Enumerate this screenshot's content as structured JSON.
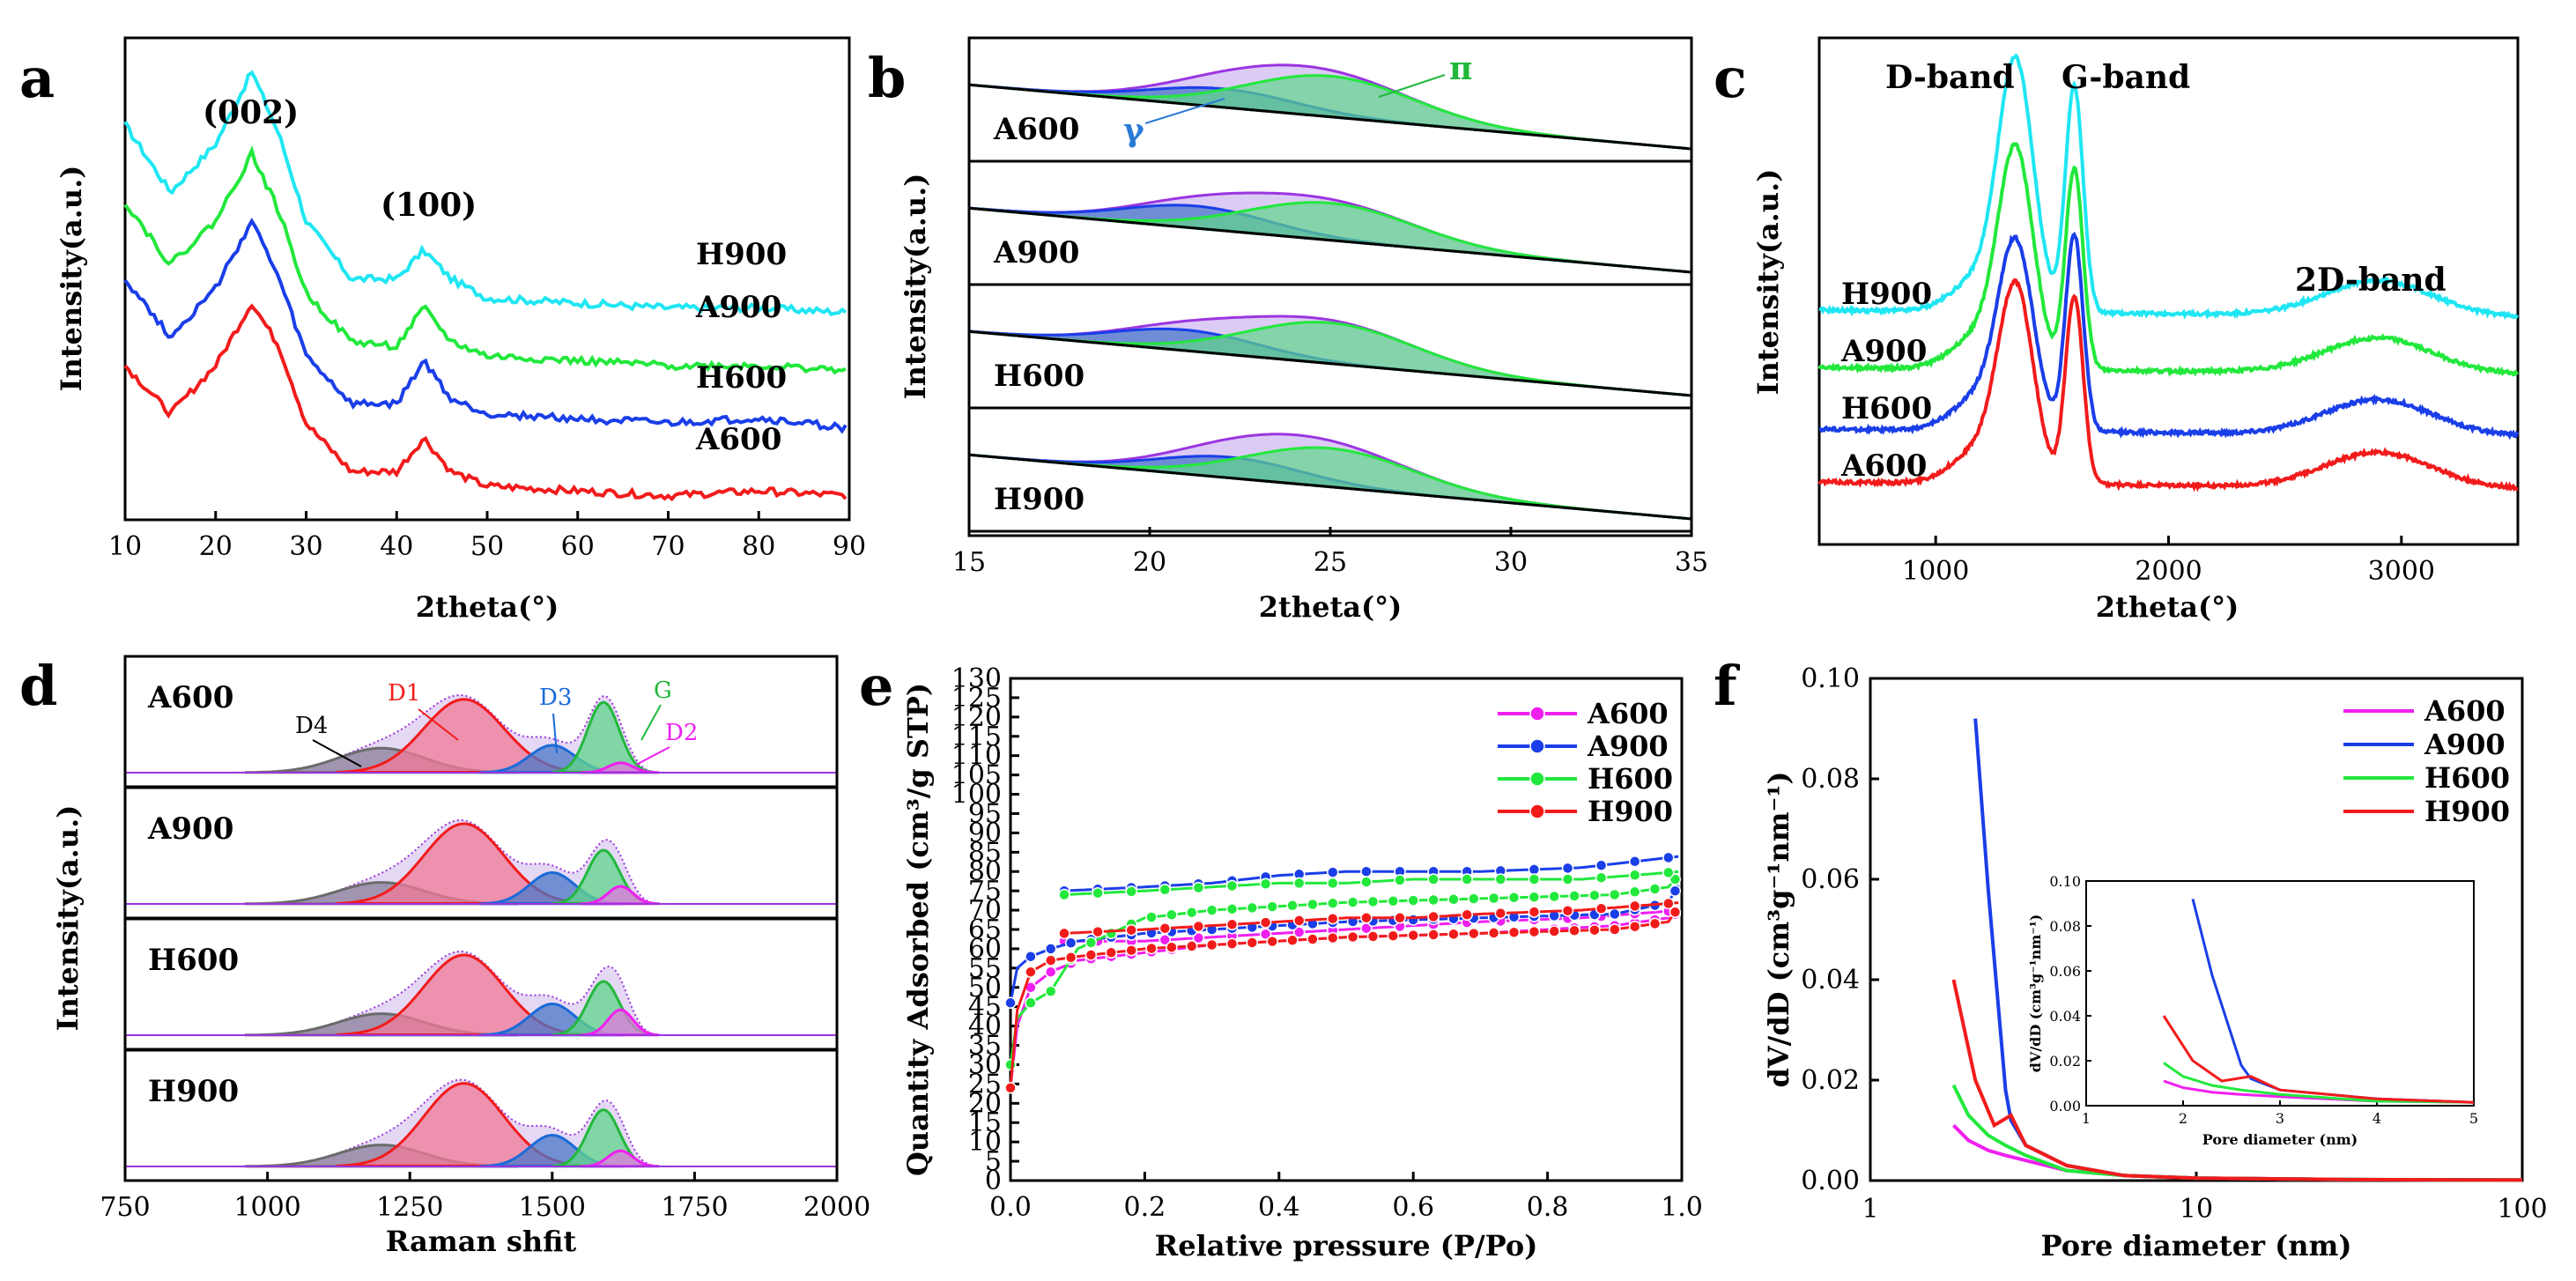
{
  "panels": {
    "a": "a",
    "b": "b",
    "c": "c",
    "d": "d",
    "e": "e",
    "f": "f"
  },
  "colors": {
    "cyan": "#1fe6f2",
    "green": "#22e83c",
    "blue": "#1a3ee8",
    "red": "#f21b1b",
    "magenta": "#f01ff0",
    "purple": "#9b35e0",
    "bluefill": "#4a78c8",
    "greenfill": "#5fd68a",
    "pinkfill": "#f07a98",
    "grayfill": "#8b7e9a"
  },
  "chart_data": [
    {
      "id": "a",
      "type": "line",
      "title": "",
      "xlabel": "2theta(°)",
      "ylabel": "Intensity(a.u.)",
      "xlim": [
        10,
        90
      ],
      "xticks": [
        "10",
        "20",
        "30",
        "40",
        "50",
        "60",
        "70",
        "80",
        "90"
      ],
      "peak_labels": [
        "(002)",
        "(100)"
      ],
      "series": [
        {
          "name": "H900",
          "color": "#1fe6f2",
          "x": [
            10,
            15,
            20,
            24,
            27,
            30,
            35,
            40,
            43,
            46,
            50,
            60,
            70,
            80,
            90
          ],
          "values": [
            0.82,
            0.68,
            0.78,
            0.93,
            0.8,
            0.62,
            0.5,
            0.5,
            0.56,
            0.5,
            0.46,
            0.45,
            0.44,
            0.44,
            0.43
          ]
        },
        {
          "name": "A900",
          "color": "#22e83c",
          "x": [
            10,
            15,
            20,
            24,
            27,
            30,
            35,
            40,
            43,
            46,
            50,
            60,
            70,
            80,
            90
          ],
          "values": [
            0.66,
            0.53,
            0.62,
            0.76,
            0.64,
            0.47,
            0.37,
            0.36,
            0.44,
            0.37,
            0.34,
            0.33,
            0.32,
            0.32,
            0.31
          ]
        },
        {
          "name": "H600",
          "color": "#1a3ee8",
          "x": [
            10,
            15,
            20,
            24,
            27,
            30,
            35,
            40,
            43,
            46,
            50,
            60,
            70,
            80,
            90
          ],
          "values": [
            0.5,
            0.38,
            0.48,
            0.62,
            0.5,
            0.34,
            0.24,
            0.24,
            0.33,
            0.25,
            0.22,
            0.21,
            0.2,
            0.21,
            0.19
          ]
        },
        {
          "name": "A600",
          "color": "#f21b1b",
          "x": [
            10,
            15,
            20,
            24,
            27,
            30,
            35,
            40,
            43,
            46,
            50,
            60,
            70,
            80,
            90
          ],
          "values": [
            0.32,
            0.22,
            0.32,
            0.45,
            0.36,
            0.2,
            0.1,
            0.1,
            0.17,
            0.1,
            0.07,
            0.06,
            0.05,
            0.06,
            0.05
          ]
        }
      ]
    },
    {
      "id": "b",
      "type": "area",
      "title": "",
      "xlabel": "2theta(°)",
      "ylabel": "Intensity(a.u.)",
      "xlim": [
        15,
        35
      ],
      "xticks": [
        "15",
        "20",
        "25",
        "30",
        "35"
      ],
      "annotations": [
        "π",
        "γ"
      ],
      "subplots": [
        {
          "name": "A600",
          "gamma_center": 22.0,
          "gamma_height": 0.25,
          "pi_center": 25.0,
          "pi_height": 0.55
        },
        {
          "name": "A900",
          "gamma_center": 21.3,
          "gamma_height": 0.3,
          "pi_center": 25.0,
          "pi_height": 0.5
        },
        {
          "name": "H600",
          "gamma_center": 21.0,
          "gamma_height": 0.28,
          "pi_center": 25.0,
          "pi_height": 0.55
        },
        {
          "name": "H900",
          "gamma_center": 22.2,
          "gamma_height": 0.28,
          "pi_center": 25.0,
          "pi_height": 0.52
        }
      ]
    },
    {
      "id": "c",
      "type": "line",
      "title": "",
      "xlabel": "2theta(°)",
      "ylabel": "Intensity(a.u.)",
      "xlim": [
        500,
        3500
      ],
      "xticks": [
        "1000",
        "2000",
        "3000"
      ],
      "band_labels": [
        "D-band",
        "G-band",
        "2D-band"
      ],
      "series": [
        {
          "name": "H900",
          "color": "#1fe6f2"
        },
        {
          "name": "A900",
          "color": "#22e83c"
        },
        {
          "name": "H600",
          "color": "#1a3ee8"
        },
        {
          "name": "A600",
          "color": "#f21b1b"
        }
      ]
    },
    {
      "id": "d",
      "type": "area",
      "title": "",
      "xlabel": "Raman shfit",
      "ylabel": "Intensity(a.u.)",
      "xlim": [
        750,
        2000
      ],
      "xticks": [
        "750",
        "1000",
        "1250",
        "1500",
        "1750",
        "2000"
      ],
      "peak_labels": [
        "D4",
        "D1",
        "D3",
        "G",
        "D2"
      ],
      "subplots": [
        {
          "name": "A600",
          "D4": 0.25,
          "D1": 0.75,
          "D3": 0.28,
          "G": 0.72,
          "D2": 0.1
        },
        {
          "name": "A900",
          "D4": 0.22,
          "D1": 0.82,
          "D3": 0.32,
          "G": 0.55,
          "D2": 0.18
        },
        {
          "name": "H600",
          "D4": 0.22,
          "D1": 0.82,
          "D3": 0.32,
          "G": 0.55,
          "D2": 0.26
        },
        {
          "name": "H900",
          "D4": 0.22,
          "D1": 0.85,
          "D3": 0.32,
          "G": 0.58,
          "D2": 0.16
        }
      ]
    },
    {
      "id": "e",
      "type": "line",
      "title": "",
      "xlabel": "Relative pressure (P/Po)",
      "ylabel": "Quantity Adsorbed (cm³/g STP)",
      "xlim": [
        0,
        1.0
      ],
      "ylim": [
        0,
        130
      ],
      "xticks": [
        "0.0",
        "0.2",
        "0.4",
        "0.6",
        "0.8",
        "1.0"
      ],
      "yticks": [
        "0",
        "5",
        "10",
        "15",
        "20",
        "25",
        "30",
        "35",
        "40",
        "45",
        "50",
        "55",
        "60",
        "65",
        "70",
        "75",
        "80",
        "85",
        "90",
        "95",
        "100",
        "105",
        "110",
        "115",
        "120",
        "125",
        "130"
      ],
      "series": [
        {
          "name": "A600",
          "color": "#f01ff0",
          "x": [
            0,
            0.01,
            0.03,
            0.06,
            0.1,
            0.2,
            0.3,
            0.5,
            0.7,
            0.9,
            0.98,
            1.0
          ],
          "adsorption": [
            24,
            40,
            50,
            54,
            57,
            59,
            61,
            63,
            64,
            66,
            68,
            70
          ],
          "desorption": [
            62,
            62,
            63,
            64,
            65,
            66,
            67,
            68,
            70
          ]
        },
        {
          "name": "A900",
          "color": "#1a3ee8",
          "x": [
            0,
            0.01,
            0.03,
            0.06,
            0.1,
            0.2,
            0.3,
            0.5,
            0.7,
            0.9,
            0.98,
            1.0
          ],
          "adsorption": [
            46,
            55,
            58,
            60,
            62,
            64,
            65,
            67,
            68,
            69,
            72,
            78
          ],
          "desorption": [
            75,
            76,
            77,
            79,
            80,
            80,
            80,
            81,
            84
          ]
        },
        {
          "name": "H600",
          "color": "#22e83c",
          "x": [
            0,
            0.01,
            0.03,
            0.06,
            0.1,
            0.2,
            0.3,
            0.5,
            0.7,
            0.9,
            0.98,
            1.0
          ],
          "adsorption": [
            30,
            42,
            46,
            49,
            60,
            68,
            70,
            72,
            73,
            74,
            76,
            80
          ],
          "desorption": [
            74,
            75,
            76,
            77,
            77,
            78,
            78,
            78,
            80
          ]
        },
        {
          "name": "H900",
          "color": "#f21b1b",
          "x": [
            0,
            0.01,
            0.03,
            0.06,
            0.1,
            0.2,
            0.3,
            0.5,
            0.7,
            0.9,
            0.98,
            1.0
          ],
          "adsorption": [
            24,
            44,
            54,
            57,
            58,
            60,
            61,
            63,
            64,
            65,
            67,
            72
          ],
          "desorption": [
            64,
            65,
            66,
            67,
            68,
            68,
            69,
            70,
            72
          ]
        }
      ]
    },
    {
      "id": "f",
      "type": "line",
      "title": "",
      "xlabel": "Pore diameter (nm)",
      "ylabel": "dV/dD (cm³g⁻¹nm⁻¹)",
      "xscale": "log",
      "xlim": [
        1,
        100
      ],
      "ylim": [
        0,
        0.1
      ],
      "xticks": [
        "1",
        "10",
        "100"
      ],
      "yticks": [
        "0.00",
        "0.02",
        "0.04",
        "0.06",
        "0.08",
        "0.10"
      ],
      "series": [
        {
          "name": "A600",
          "color": "#f01ff0",
          "x": [
            1.8,
            2.0,
            2.3,
            2.6,
            3.0,
            4,
            6,
            10,
            30,
            100
          ],
          "values": [
            0.011,
            0.008,
            0.006,
            0.005,
            0.004,
            0.002,
            0.001,
            0.0005,
            0.0002,
            0.0001
          ]
        },
        {
          "name": "A900",
          "color": "#1a3ee8",
          "x": [
            2.1,
            2.3,
            2.6,
            2.7,
            3.0,
            4,
            6,
            10,
            30,
            100
          ],
          "values": [
            0.092,
            0.058,
            0.018,
            0.012,
            0.007,
            0.003,
            0.001,
            0.0005,
            0.0002,
            0.0001
          ]
        },
        {
          "name": "H600",
          "color": "#22e83c",
          "x": [
            1.8,
            2.0,
            2.3,
            2.6,
            3.0,
            4,
            6,
            10,
            30,
            100
          ],
          "values": [
            0.019,
            0.013,
            0.009,
            0.007,
            0.005,
            0.002,
            0.001,
            0.0005,
            0.0002,
            0.0001
          ]
        },
        {
          "name": "H900",
          "color": "#f21b1b",
          "x": [
            1.8,
            2.1,
            2.4,
            2.7,
            3.0,
            4,
            6,
            10,
            30,
            100
          ],
          "values": [
            0.04,
            0.02,
            0.011,
            0.013,
            0.007,
            0.003,
            0.001,
            0.0005,
            0.0002,
            0.0001
          ]
        }
      ],
      "inset": {
        "xlabel": "Pore diameter (nm)",
        "ylabel": "dV/dD (cm³g⁻¹nm⁻¹)",
        "xlim": [
          1,
          5
        ],
        "ylim": [
          0,
          0.1
        ],
        "xticks": [
          "1",
          "2",
          "3",
          "4",
          "5"
        ],
        "yticks": [
          "0.00",
          "0.02",
          "0.04",
          "0.06",
          "0.08",
          "0.10"
        ]
      }
    }
  ]
}
